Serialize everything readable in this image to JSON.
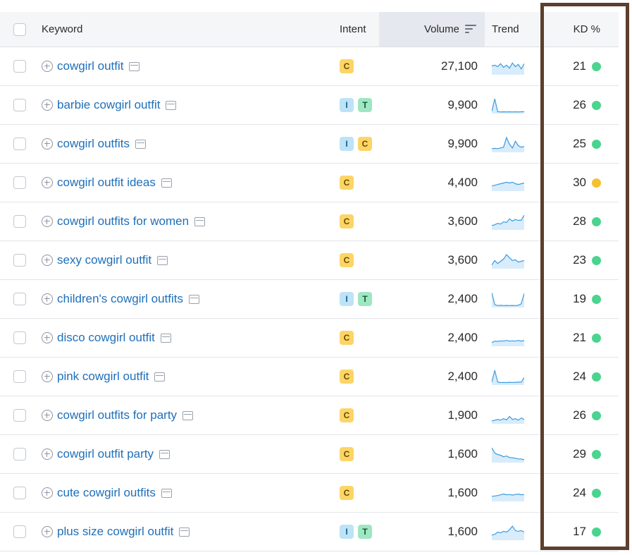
{
  "header": {
    "keyword": "Keyword",
    "intent": "Intent",
    "volume": "Volume",
    "trend": "Trend",
    "kd": "KD %"
  },
  "colors": {
    "link": "#1e6fba",
    "kd_easy": "#4ad48f",
    "kd_medium": "#f7c02e",
    "trend_line": "#3d9be0",
    "trend_fill": "#d8ecfb",
    "highlight_border": "#5d3f2d"
  },
  "icons": {
    "add": "plus-circle-icon",
    "serp": "serp-features-icon",
    "sort": "sort-descending-icon"
  },
  "rows": [
    {
      "keyword": "cowgirl outfit",
      "intent": [
        "C"
      ],
      "volume": "27,100",
      "kd": "21",
      "kd_level": "easy",
      "trend": [
        0.55,
        0.6,
        0.5,
        0.7,
        0.45,
        0.6,
        0.4,
        0.75,
        0.5,
        0.65,
        0.35,
        0.7
      ]
    },
    {
      "keyword": "barbie cowgirl outfit",
      "intent": [
        "I",
        "T"
      ],
      "volume": "9,900",
      "kd": "26",
      "kd_level": "easy",
      "trend": [
        0.1,
        0.95,
        0.08,
        0.06,
        0.07,
        0.06,
        0.07,
        0.06,
        0.07,
        0.06,
        0.07,
        0.08
      ]
    },
    {
      "keyword": "cowgirl outfits",
      "intent": [
        "I",
        "C"
      ],
      "volume": "9,900",
      "kd": "25",
      "kd_level": "easy",
      "trend": [
        0.2,
        0.22,
        0.2,
        0.25,
        0.3,
        0.95,
        0.5,
        0.25,
        0.7,
        0.4,
        0.3,
        0.35
      ]
    },
    {
      "keyword": "cowgirl outfit ideas",
      "intent": [
        "C"
      ],
      "volume": "4,400",
      "kd": "30",
      "kd_level": "medium",
      "trend": [
        0.3,
        0.35,
        0.4,
        0.45,
        0.5,
        0.55,
        0.5,
        0.55,
        0.45,
        0.4,
        0.45,
        0.5
      ]
    },
    {
      "keyword": "cowgirl outfits for women",
      "intent": [
        "C"
      ],
      "volume": "3,600",
      "kd": "28",
      "kd_level": "easy",
      "trend": [
        0.25,
        0.3,
        0.4,
        0.35,
        0.5,
        0.45,
        0.7,
        0.55,
        0.65,
        0.6,
        0.6,
        0.95
      ]
    },
    {
      "keyword": "sexy cowgirl outfit",
      "intent": [
        "C"
      ],
      "volume": "3,600",
      "kd": "23",
      "kd_level": "easy",
      "trend": [
        0.2,
        0.5,
        0.3,
        0.45,
        0.6,
        0.9,
        0.7,
        0.5,
        0.55,
        0.4,
        0.45,
        0.5
      ]
    },
    {
      "keyword": "children's cowgirl outfits",
      "intent": [
        "I",
        "T"
      ],
      "volume": "2,400",
      "kd": "19",
      "kd_level": "easy",
      "trend": [
        0.95,
        0.15,
        0.08,
        0.1,
        0.08,
        0.09,
        0.08,
        0.09,
        0.08,
        0.1,
        0.2,
        0.9
      ]
    },
    {
      "keyword": "disco cowgirl outfit",
      "intent": [
        "C"
      ],
      "volume": "2,400",
      "kd": "21",
      "kd_level": "easy",
      "trend": [
        0.2,
        0.3,
        0.28,
        0.32,
        0.3,
        0.35,
        0.3,
        0.32,
        0.3,
        0.35,
        0.3,
        0.35
      ]
    },
    {
      "keyword": "pink cowgirl outfit",
      "intent": [
        "C"
      ],
      "volume": "2,400",
      "kd": "24",
      "kd_level": "easy",
      "trend": [
        0.15,
        0.95,
        0.15,
        0.12,
        0.13,
        0.12,
        0.14,
        0.13,
        0.14,
        0.15,
        0.15,
        0.45
      ]
    },
    {
      "keyword": "cowgirl outfits for party",
      "intent": [
        "C"
      ],
      "volume": "1,900",
      "kd": "26",
      "kd_level": "easy",
      "trend": [
        0.15,
        0.2,
        0.25,
        0.2,
        0.3,
        0.22,
        0.45,
        0.25,
        0.3,
        0.2,
        0.35,
        0.25
      ]
    },
    {
      "keyword": "cowgirl outfit party",
      "intent": [
        "C"
      ],
      "volume": "1,600",
      "kd": "29",
      "kd_level": "easy",
      "trend": [
        0.95,
        0.6,
        0.5,
        0.45,
        0.35,
        0.4,
        0.3,
        0.28,
        0.25,
        0.2,
        0.2,
        0.15
      ]
    },
    {
      "keyword": "cute cowgirl outfits",
      "intent": [
        "C"
      ],
      "volume": "1,600",
      "kd": "24",
      "kd_level": "easy",
      "trend": [
        0.3,
        0.32,
        0.35,
        0.4,
        0.45,
        0.4,
        0.42,
        0.38,
        0.42,
        0.45,
        0.4,
        0.42
      ]
    },
    {
      "keyword": "plus size cowgirl outfit",
      "intent": [
        "I",
        "T"
      ],
      "volume": "1,600",
      "kd": "17",
      "kd_level": "easy",
      "trend": [
        0.3,
        0.35,
        0.5,
        0.45,
        0.55,
        0.5,
        0.65,
        0.9,
        0.6,
        0.55,
        0.6,
        0.5
      ]
    }
  ]
}
